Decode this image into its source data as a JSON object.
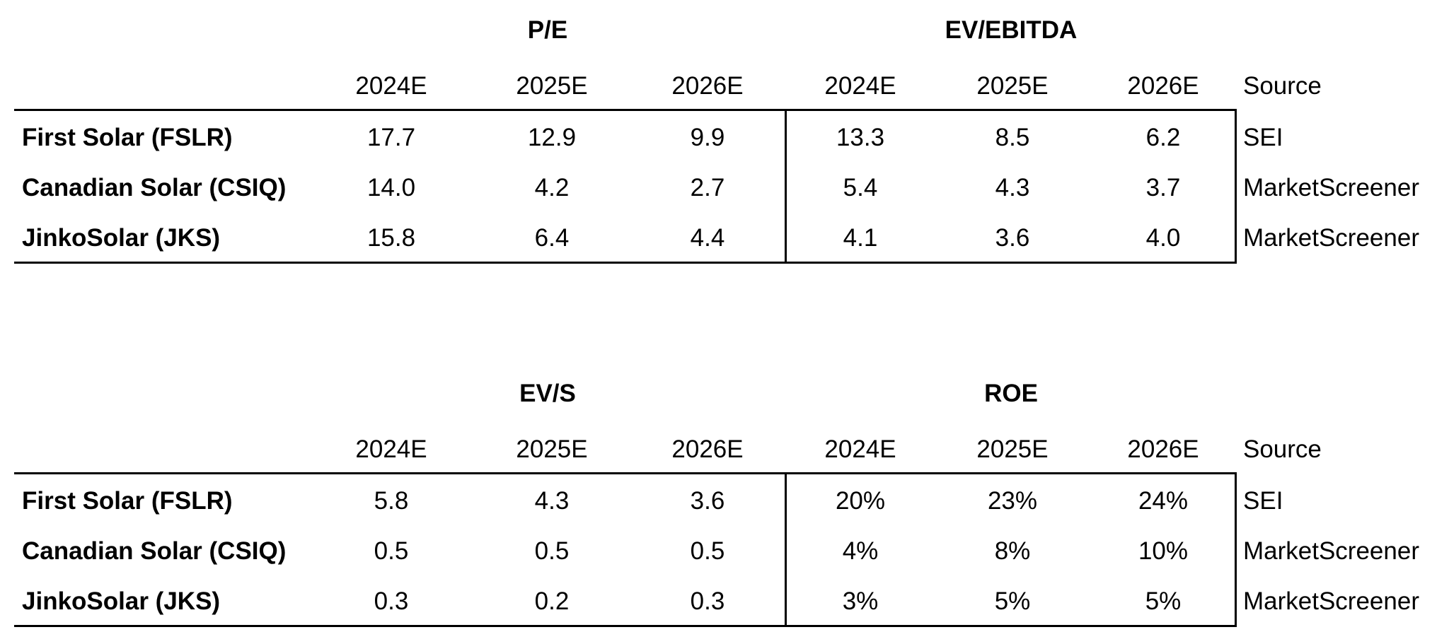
{
  "tables": [
    {
      "group1": "P/E",
      "group2": "EV/EBITDA",
      "years": [
        "2024E",
        "2025E",
        "2026E"
      ],
      "source_header": "Source",
      "rows": [
        {
          "company": "First Solar (FSLR)",
          "values": [
            "17.7",
            "12.9",
            "9.9",
            "13.3",
            "8.5",
            "6.2"
          ],
          "source": "SEI"
        },
        {
          "company": "Canadian Solar (CSIQ)",
          "values": [
            "14.0",
            "4.2",
            "2.7",
            "5.4",
            "4.3",
            "3.7"
          ],
          "source": "MarketScreener"
        },
        {
          "company": "JinkoSolar (JKS)",
          "values": [
            "15.8",
            "6.4",
            "4.4",
            "4.1",
            "3.6",
            "4.0"
          ],
          "source": "MarketScreener"
        }
      ]
    },
    {
      "group1": "EV/S",
      "group2": "ROE",
      "years": [
        "2024E",
        "2025E",
        "2026E"
      ],
      "source_header": "Source",
      "rows": [
        {
          "company": "First Solar (FSLR)",
          "values": [
            "5.8",
            "4.3",
            "3.6",
            "20%",
            "23%",
            "24%"
          ],
          "source": "SEI"
        },
        {
          "company": "Canadian Solar (CSIQ)",
          "values": [
            "0.5",
            "0.5",
            "0.5",
            "4%",
            "8%",
            "10%"
          ],
          "source": "MarketScreener"
        },
        {
          "company": "JinkoSolar (JKS)",
          "values": [
            "0.3",
            "0.2",
            "0.3",
            "3%",
            "5%",
            "5%"
          ],
          "source": "MarketScreener"
        }
      ]
    }
  ]
}
